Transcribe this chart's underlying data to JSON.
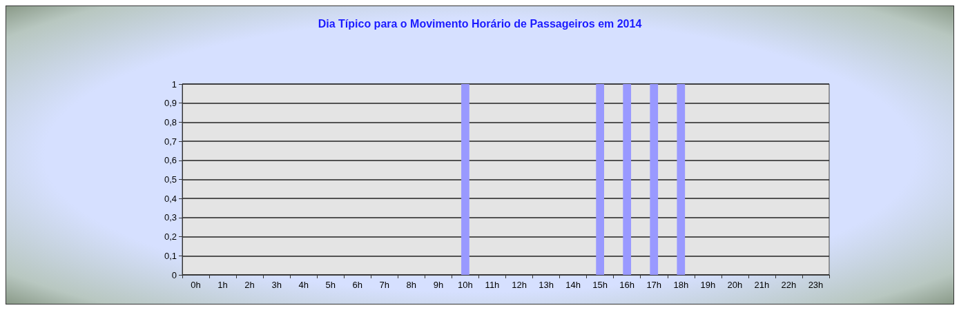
{
  "chart_data": {
    "type": "bar",
    "title": "Dia Típico para o Movimento Horário de Passageiros em 2014",
    "categories": [
      "0h",
      "1h",
      "2h",
      "3h",
      "4h",
      "5h",
      "6h",
      "7h",
      "8h",
      "9h",
      "10h",
      "11h",
      "12h",
      "13h",
      "14h",
      "15h",
      "16h",
      "17h",
      "18h",
      "19h",
      "20h",
      "21h",
      "22h",
      "23h"
    ],
    "values": [
      0,
      0,
      0,
      0,
      0,
      0,
      0,
      0,
      0,
      0,
      1,
      0,
      0,
      0,
      0,
      1,
      1,
      1,
      1,
      0,
      0,
      0,
      0,
      0
    ],
    "color": "#9999ff",
    "ylim": [
      0,
      1
    ],
    "yticks": [
      0,
      {
        "value": 0.1,
        "label": "0,1"
      },
      {
        "value": 0.2,
        "label": "0,2"
      },
      {
        "value": 0.3,
        "label": "0,3"
      },
      {
        "value": 0.4,
        "label": "0,4"
      },
      {
        "value": 0.5,
        "label": "0,5"
      },
      {
        "value": 0.6,
        "label": "0,6"
      },
      {
        "value": 0.7,
        "label": "0,7"
      },
      {
        "value": 0.8,
        "label": "0,8"
      },
      {
        "value": 0.9,
        "label": "0,9"
      },
      1
    ],
    "grid": "y"
  }
}
